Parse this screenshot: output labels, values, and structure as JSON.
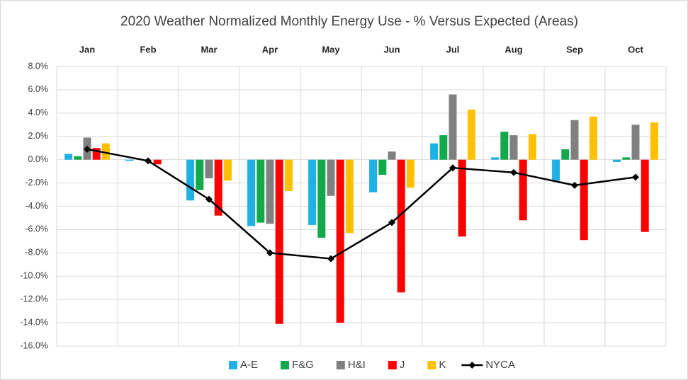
{
  "chart_data": {
    "type": "bar",
    "title": "2020 Weather Normalized Monthly Energy Use - % Versus Expected (Areas)",
    "categories": [
      "Jan",
      "Feb",
      "Mar",
      "Apr",
      "May",
      "Jun",
      "Jul",
      "Aug",
      "Sep",
      "Oct"
    ],
    "series": [
      {
        "name": "A-E",
        "color": "#1fb0e6",
        "values": [
          0.5,
          -0.1,
          -3.5,
          -5.7,
          -5.6,
          -2.8,
          1.4,
          0.2,
          -1.8,
          -0.2
        ]
      },
      {
        "name": "F&G",
        "color": "#12a94c",
        "values": [
          0.3,
          0,
          -2.6,
          -5.4,
          -6.7,
          -1.3,
          2.1,
          2.4,
          0.9,
          0.2
        ]
      },
      {
        "name": "H&I",
        "color": "#808080",
        "values": [
          1.9,
          0,
          -1.6,
          -5.5,
          -3.1,
          0.7,
          5.6,
          2.1,
          3.4,
          3.0
        ]
      },
      {
        "name": "J",
        "color": "#ff0000",
        "values": [
          1.0,
          -0.4,
          -4.8,
          -14.1,
          -14.0,
          -11.4,
          -6.6,
          -5.2,
          -6.9,
          -6.2
        ]
      },
      {
        "name": "K",
        "color": "#ffc000",
        "values": [
          1.4,
          0,
          -1.8,
          -2.7,
          -6.3,
          -2.4,
          4.3,
          2.2,
          3.7,
          3.2
        ]
      },
      {
        "name": "NYCA",
        "color": "#000000",
        "type": "line",
        "values": [
          0.9,
          -0.1,
          -3.4,
          -8.0,
          -8.5,
          -5.4,
          -0.7,
          -1.1,
          -2.2,
          -1.5
        ]
      }
    ],
    "ylim": [
      -16,
      8
    ],
    "yticks": [
      {
        "value": 8,
        "label": "8.0%"
      },
      {
        "value": 6,
        "label": "6.0%"
      },
      {
        "value": 4,
        "label": "4.0%"
      },
      {
        "value": 2,
        "label": "2.0%"
      },
      {
        "value": 0,
        "label": "0.0%"
      },
      {
        "value": -2,
        "label": "-2.0%"
      },
      {
        "value": -4,
        "label": "-4.0%"
      },
      {
        "value": -6,
        "label": "-6.0%"
      },
      {
        "value": -8,
        "label": "-8.0%"
      },
      {
        "value": -10,
        "label": "-10.0%"
      },
      {
        "value": -12,
        "label": "-12.0%"
      },
      {
        "value": -14,
        "label": "-14.0%"
      },
      {
        "value": -16,
        "label": "-16.0%"
      }
    ],
    "grid": true,
    "legend": "bottom"
  }
}
